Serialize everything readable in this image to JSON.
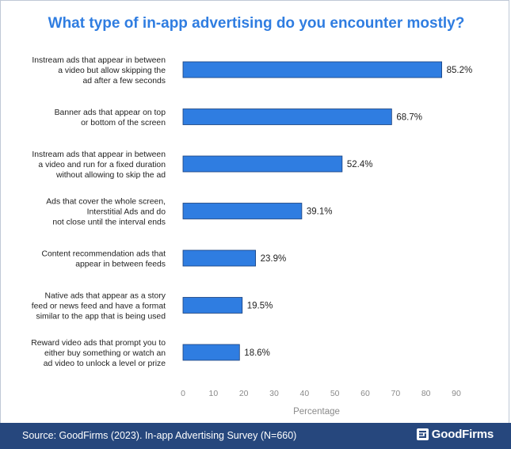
{
  "title": "What type of in-app advertising do you encounter mostly?",
  "footer": {
    "source": "Source: GoodFirms (2023). In-app Advertising Survey (N=660)",
    "logo_text": "GoodFirms"
  },
  "colors": {
    "title": "#2f7de1",
    "bar": "#2f7de1",
    "bar_stroke": "#1a3f7a",
    "footer_bg": "#26477d"
  },
  "chart_data": {
    "type": "bar",
    "orientation": "horizontal",
    "categories": [
      [
        "Instream ads that appear in between",
        "a video but allow skipping the",
        "ad after a few seconds"
      ],
      [
        "Banner ads that appear on top",
        "or bottom of the screen"
      ],
      [
        "Instream ads that appear in between",
        "a video and run for a fixed duration",
        "without allowing to skip the ad"
      ],
      [
        "Ads that cover the whole screen,",
        "Interstitial Ads and do",
        "not close until the interval ends"
      ],
      [
        "Content recommendation ads that",
        "appear in between feeds"
      ],
      [
        "Native ads that appear as a story",
        "feed or news feed and have a format",
        "similar to the app that is being used"
      ],
      [
        "Reward video ads that prompt you to",
        "either buy something or watch an",
        "ad video to unlock a level or prize"
      ]
    ],
    "values": [
      85.2,
      68.7,
      52.4,
      39.1,
      23.9,
      19.5,
      18.6
    ],
    "value_labels": [
      "85.2%",
      "68.7%",
      "52.4%",
      "39.1%",
      "23.9%",
      "19.5%",
      "18.6%"
    ],
    "xlabel": "Percentage",
    "ylabel": "",
    "xlim": [
      0,
      90
    ],
    "xticks": [
      0,
      10,
      20,
      30,
      40,
      50,
      60,
      70,
      80,
      90
    ],
    "grid": false,
    "legend": "none"
  }
}
